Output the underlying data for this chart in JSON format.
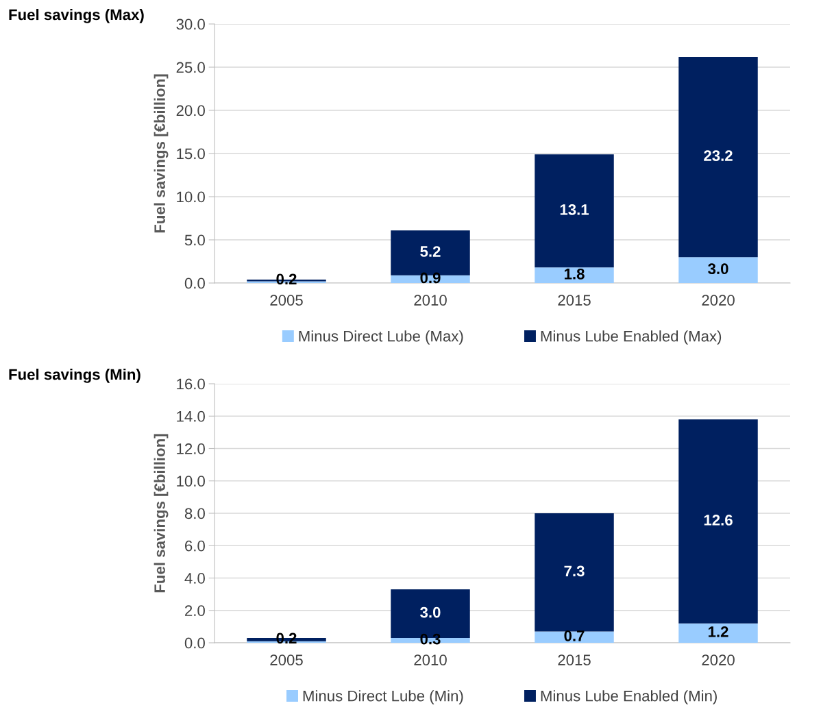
{
  "chart_data": [
    {
      "type": "bar",
      "title": "Fuel savings (Max)",
      "ylabel": "Fuel savings [€billion]",
      "categories": [
        "2005",
        "2010",
        "2015",
        "2020"
      ],
      "stacked": true,
      "ylim": [
        0,
        30
      ],
      "yticks": [
        {
          "value": 0,
          "label": "0.0"
        },
        {
          "value": 5,
          "label": "5.0"
        },
        {
          "value": 10,
          "label": "10.0"
        },
        {
          "value": 15,
          "label": "15.0"
        },
        {
          "value": 20,
          "label": "20.0"
        },
        {
          "value": 25,
          "label": "25.0"
        },
        {
          "value": 30,
          "label": "30.0"
        }
      ],
      "grid": "y",
      "legend": "bottom",
      "series": [
        {
          "name": "Minus Direct Lube (Max)",
          "color": "#99ccff",
          "values": [
            0.2,
            0.9,
            1.8,
            3.0
          ],
          "value_labels": [
            null,
            "0.9",
            "1.8",
            "3.0"
          ]
        },
        {
          "name": "Minus Lube Enabled (Max)",
          "color": "#002060",
          "values": [
            0.2,
            5.2,
            13.1,
            23.2
          ],
          "value_labels": [
            "0.2",
            "5.2",
            "13.1",
            "23.2"
          ]
        }
      ]
    },
    {
      "type": "bar",
      "title": "Fuel savings (Min)",
      "ylabel": "Fuel savings [€billion]",
      "categories": [
        "2005",
        "2010",
        "2015",
        "2020"
      ],
      "stacked": true,
      "ylim": [
        0,
        16
      ],
      "yticks": [
        {
          "value": 0,
          "label": "0.0"
        },
        {
          "value": 2,
          "label": "2.0"
        },
        {
          "value": 4,
          "label": "4.0"
        },
        {
          "value": 6,
          "label": "6.0"
        },
        {
          "value": 8,
          "label": "8.0"
        },
        {
          "value": 10,
          "label": "10.0"
        },
        {
          "value": 12,
          "label": "12.0"
        },
        {
          "value": 14,
          "label": "14.0"
        },
        {
          "value": 16,
          "label": "16.0"
        }
      ],
      "grid": "y",
      "legend": "bottom",
      "series": [
        {
          "name": "Minus Direct Lube (Min)",
          "color": "#99ccff",
          "values": [
            0.1,
            0.3,
            0.7,
            1.2
          ],
          "value_labels": [
            null,
            "0.3",
            "0.7",
            "1.2"
          ]
        },
        {
          "name": "Minus Lube Enabled (Min)",
          "color": "#002060",
          "values": [
            0.2,
            3.0,
            7.3,
            12.6
          ],
          "value_labels": [
            "0.2",
            "3.0",
            "7.3",
            "12.6"
          ]
        }
      ]
    }
  ]
}
